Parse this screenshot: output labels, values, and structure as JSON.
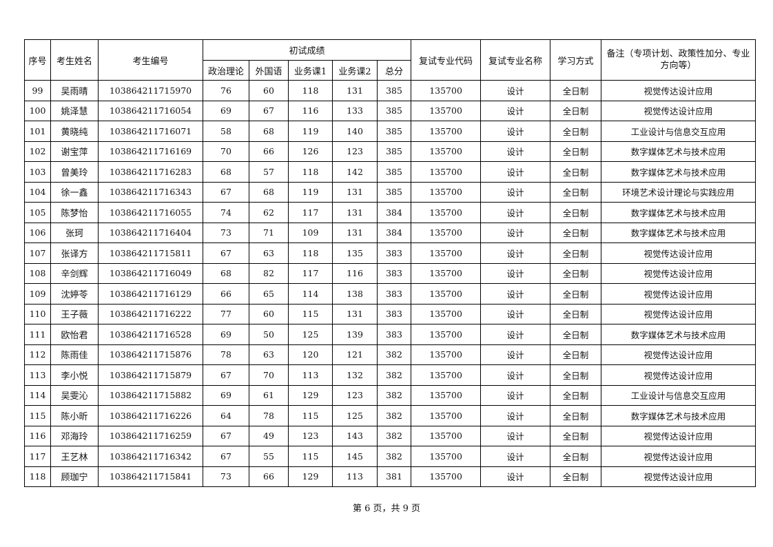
{
  "table": {
    "headers": {
      "seq": "序号",
      "name": "考生姓名",
      "id": "考生编号",
      "prelim_group": "初试成绩",
      "politics": "政治理论",
      "language": "外国语",
      "course1": "业务课1",
      "course2": "业务课2",
      "total": "总分",
      "major_code": "复试专业代码",
      "major_name": "复试专业名称",
      "study_mode": "学习方式",
      "remarks": "备注（专项计划、政策性加分、专业方向等）"
    },
    "rows": [
      [
        "99",
        "吴雨晴",
        "103864211715970",
        "76",
        "60",
        "118",
        "131",
        "385",
        "135700",
        "设计",
        "全日制",
        "视觉传达设计应用"
      ],
      [
        "100",
        "姚泽慧",
        "103864211716054",
        "69",
        "67",
        "116",
        "133",
        "385",
        "135700",
        "设计",
        "全日制",
        "视觉传达设计应用"
      ],
      [
        "101",
        "黄晓纯",
        "103864211716071",
        "58",
        "68",
        "119",
        "140",
        "385",
        "135700",
        "设计",
        "全日制",
        "工业设计与信息交互应用"
      ],
      [
        "102",
        "谢宝萍",
        "103864211716169",
        "70",
        "66",
        "126",
        "123",
        "385",
        "135700",
        "设计",
        "全日制",
        "数字媒体艺术与技术应用"
      ],
      [
        "103",
        "曾美玲",
        "103864211716283",
        "68",
        "57",
        "118",
        "142",
        "385",
        "135700",
        "设计",
        "全日制",
        "数字媒体艺术与技术应用"
      ],
      [
        "104",
        "徐一鑫",
        "103864211716343",
        "67",
        "68",
        "119",
        "131",
        "385",
        "135700",
        "设计",
        "全日制",
        "环境艺术设计理论与实践应用"
      ],
      [
        "105",
        "陈梦怡",
        "103864211716055",
        "74",
        "62",
        "117",
        "131",
        "384",
        "135700",
        "设计",
        "全日制",
        "数字媒体艺术与技术应用"
      ],
      [
        "106",
        "张珂",
        "103864211716404",
        "73",
        "71",
        "109",
        "131",
        "384",
        "135700",
        "设计",
        "全日制",
        "数字媒体艺术与技术应用"
      ],
      [
        "107",
        "张译方",
        "103864211715811",
        "67",
        "63",
        "118",
        "135",
        "383",
        "135700",
        "设计",
        "全日制",
        "视觉传达设计应用"
      ],
      [
        "108",
        "辛剑辉",
        "103864211716049",
        "68",
        "82",
        "117",
        "116",
        "383",
        "135700",
        "设计",
        "全日制",
        "视觉传达设计应用"
      ],
      [
        "109",
        "沈婷苓",
        "103864211716129",
        "66",
        "65",
        "114",
        "138",
        "383",
        "135700",
        "设计",
        "全日制",
        "视觉传达设计应用"
      ],
      [
        "110",
        "王子薇",
        "103864211716222",
        "77",
        "60",
        "115",
        "131",
        "383",
        "135700",
        "设计",
        "全日制",
        "视觉传达设计应用"
      ],
      [
        "111",
        "欧怡君",
        "103864211716528",
        "69",
        "50",
        "125",
        "139",
        "383",
        "135700",
        "设计",
        "全日制",
        "数字媒体艺术与技术应用"
      ],
      [
        "112",
        "陈雨佳",
        "103864211715876",
        "78",
        "63",
        "120",
        "121",
        "382",
        "135700",
        "设计",
        "全日制",
        "视觉传达设计应用"
      ],
      [
        "113",
        "李小悦",
        "103864211715879",
        "67",
        "70",
        "113",
        "132",
        "382",
        "135700",
        "设计",
        "全日制",
        "视觉传达设计应用"
      ],
      [
        "114",
        "吴雯沁",
        "103864211715882",
        "69",
        "61",
        "129",
        "123",
        "382",
        "135700",
        "设计",
        "全日制",
        "工业设计与信息交互应用"
      ],
      [
        "115",
        "陈小昕",
        "103864211716226",
        "64",
        "78",
        "115",
        "125",
        "382",
        "135700",
        "设计",
        "全日制",
        "数字媒体艺术与技术应用"
      ],
      [
        "116",
        "邓海玲",
        "103864211716259",
        "67",
        "49",
        "123",
        "143",
        "382",
        "135700",
        "设计",
        "全日制",
        "视觉传达设计应用"
      ],
      [
        "117",
        "王艺林",
        "103864211716342",
        "67",
        "55",
        "115",
        "145",
        "382",
        "135700",
        "设计",
        "全日制",
        "视觉传达设计应用"
      ],
      [
        "118",
        "顾珈宁",
        "103864211715841",
        "73",
        "66",
        "129",
        "113",
        "381",
        "135700",
        "设计",
        "全日制",
        "视觉传达设计应用"
      ]
    ]
  },
  "footer": "第 6 页，共 9 页"
}
